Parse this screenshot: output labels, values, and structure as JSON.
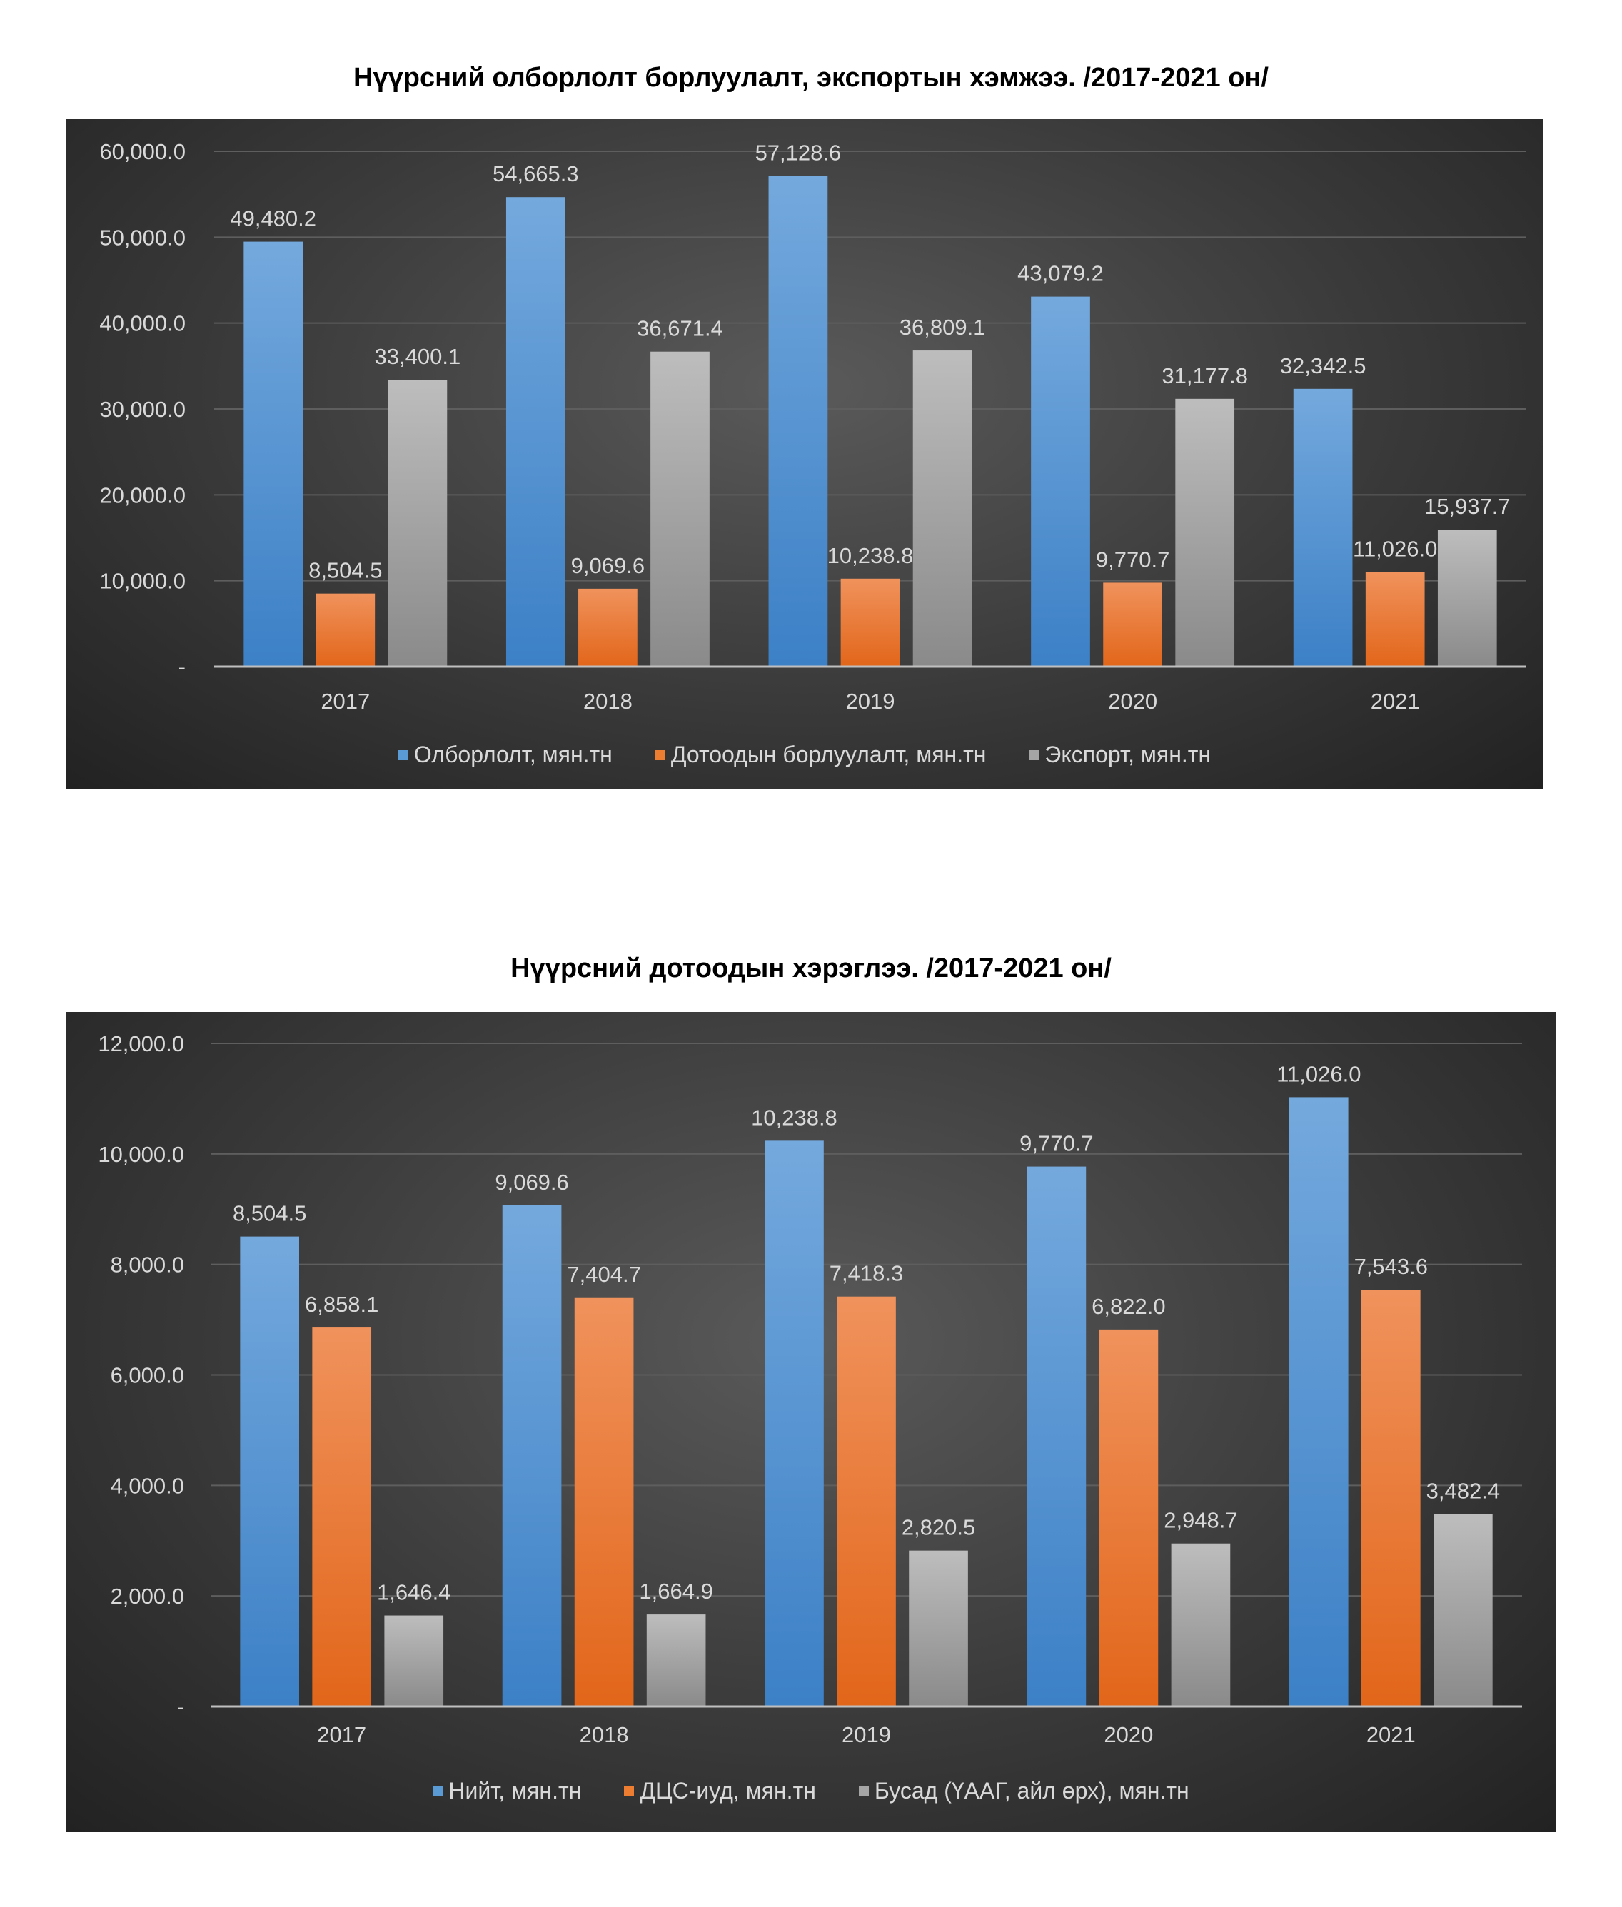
{
  "chart_data": [
    {
      "type": "bar",
      "title": "Нүүрсний олборлолт борлуулалт, экспортын хэмжээ. /2017-2021 он/",
      "categories": [
        "2017",
        "2018",
        "2019",
        "2020",
        "2021"
      ],
      "series": [
        {
          "name": "Олборлолт, мян.тн",
          "color": "#5b9bd5",
          "values": [
            49480.2,
            54665.3,
            57128.6,
            43079.2,
            32342.5
          ],
          "labels": [
            "49,480.2",
            "54,665.3",
            "57,128.6",
            "43,079.2",
            "32,342.5"
          ]
        },
        {
          "name": "Дотоодын борлуулалт, мян.тн",
          "color": "#ed7d31",
          "values": [
            8504.5,
            9069.6,
            10238.8,
            9770.7,
            11026.0
          ],
          "labels": [
            "8,504.5",
            "9,069.6",
            "10,238.8",
            "9,770.7",
            "11,026.0"
          ]
        },
        {
          "name": "Экспорт, мян.тн",
          "color": "#a5a5a5",
          "values": [
            33400.1,
            36671.4,
            36809.1,
            31177.8,
            15937.7
          ],
          "labels": [
            "33,400.1",
            "36,671.4",
            "36,809.1",
            "31,177.8",
            "15,937.7"
          ]
        }
      ],
      "ylim": [
        0,
        60000
      ],
      "yticks": [
        0,
        10000,
        20000,
        30000,
        40000,
        50000,
        60000
      ],
      "ytick_labels": [
        "-",
        "10,000.0",
        "20,000.0",
        "30,000.0",
        "40,000.0",
        "50,000.0",
        "60,000.0"
      ],
      "grid": true,
      "legend": "bottom"
    },
    {
      "type": "bar",
      "title": "Нүүрсний дотоодын хэрэглээ. /2017-2021 он/",
      "categories": [
        "2017",
        "2018",
        "2019",
        "2020",
        "2021"
      ],
      "series": [
        {
          "name": "Нийт, мян.тн",
          "color": "#5b9bd5",
          "values": [
            8504.5,
            9069.6,
            10238.8,
            9770.7,
            11026.0
          ],
          "labels": [
            "8,504.5",
            "9,069.6",
            "10,238.8",
            "9,770.7",
            "11,026.0"
          ]
        },
        {
          "name": "ДЦС-иуд, мян.тн",
          "color": "#ed7d31",
          "values": [
            6858.1,
            7404.7,
            7418.3,
            6822.0,
            7543.6
          ],
          "labels": [
            "6,858.1",
            "7,404.7",
            "7,418.3",
            "6,822.0",
            "7,543.6"
          ]
        },
        {
          "name": "Бусад (ҮААГ, айл өрх), мян.тн",
          "color": "#a5a5a5",
          "values": [
            1646.4,
            1664.9,
            2820.5,
            2948.7,
            3482.4
          ],
          "labels": [
            "1,646.4",
            "1,664.9",
            "2,820.5",
            "2,948.7",
            "3,482.4"
          ]
        }
      ],
      "ylim": [
        0,
        12000
      ],
      "yticks": [
        0,
        2000,
        4000,
        6000,
        8000,
        10000,
        12000
      ],
      "ytick_labels": [
        "-",
        "2,000.0",
        "4,000.0",
        "6,000.0",
        "8,000.0",
        "10,000.0",
        "12,000.0"
      ],
      "grid": true,
      "legend": "bottom"
    }
  ]
}
